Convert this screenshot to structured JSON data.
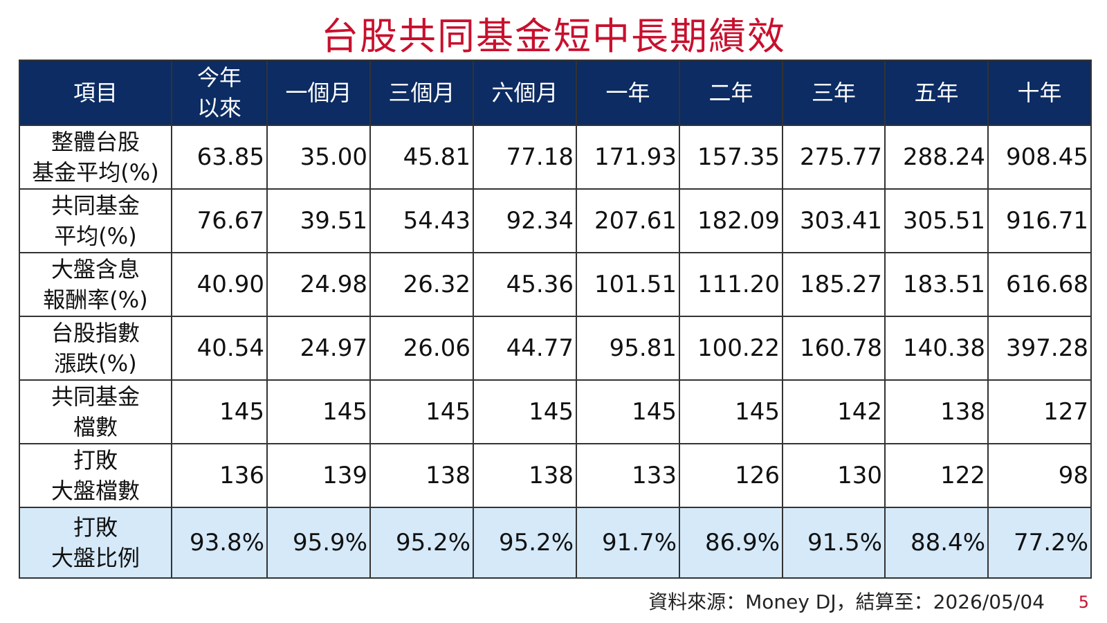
{
  "header": {
    "title": "台股共同基金短中長期績效"
  },
  "table": {
    "columns": [
      [
        "項目"
      ],
      [
        "今年",
        "以來"
      ],
      [
        "一個月"
      ],
      [
        "三個月"
      ],
      [
        "六個月"
      ],
      [
        "一年"
      ],
      [
        "二年"
      ],
      [
        "三年"
      ],
      [
        "五年"
      ],
      [
        "十年"
      ]
    ],
    "rows": [
      {
        "label": [
          "整體台股",
          "基金平均(%)"
        ],
        "cells": [
          "63.85",
          "35.00",
          "45.81",
          "77.18",
          "171.93",
          "157.35",
          "275.77",
          "288.24",
          "908.45"
        ]
      },
      {
        "label": [
          "共同基金",
          "平均(%)"
        ],
        "cells": [
          "76.67",
          "39.51",
          "54.43",
          "92.34",
          "207.61",
          "182.09",
          "303.41",
          "305.51",
          "916.71"
        ]
      },
      {
        "label": [
          "大盤含息",
          "報酬率(%)"
        ],
        "cells": [
          "40.90",
          "24.98",
          "26.32",
          "45.36",
          "101.51",
          "111.20",
          "185.27",
          "183.51",
          "616.68"
        ]
      },
      {
        "label": [
          "台股指數",
          "漲跌(%)"
        ],
        "cells": [
          "40.54",
          "24.97",
          "26.06",
          "44.77",
          "95.81",
          "100.22",
          "160.78",
          "140.38",
          "397.28"
        ]
      },
      {
        "label": [
          "共同基金",
          "檔數"
        ],
        "cells": [
          "145",
          "145",
          "145",
          "145",
          "145",
          "145",
          "142",
          "138",
          "127"
        ]
      },
      {
        "label": [
          "打敗",
          "大盤檔數"
        ],
        "cells": [
          "136",
          "139",
          "138",
          "138",
          "133",
          "126",
          "130",
          "122",
          "98"
        ]
      },
      {
        "label": [
          "打敗",
          "大盤比例"
        ],
        "cells": [
          "93.8%",
          "95.9%",
          "95.2%",
          "95.2%",
          "91.7%",
          "86.9%",
          "91.5%",
          "88.4%",
          "77.2%"
        ],
        "highlight": true
      }
    ]
  },
  "footer": {
    "source": "資料來源：Money DJ，結算至：2026/05/04",
    "page": "5"
  }
}
